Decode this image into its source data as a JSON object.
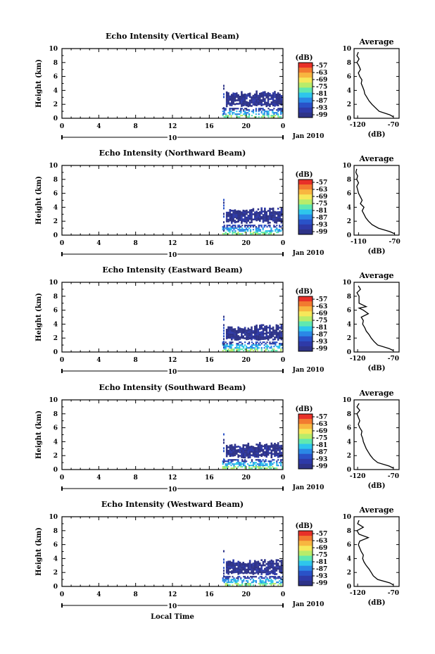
{
  "colorbar": {
    "unit": "(dB)",
    "labels": [
      "-57",
      "-63",
      "-69",
      "-75",
      "-81",
      "-87",
      "-93",
      "-99"
    ],
    "colors": [
      "#e83028",
      "#f27a30",
      "#f8b640",
      "#f6e85a",
      "#b8ec6a",
      "#60e8b0",
      "#2ec6ec",
      "#2a88e6",
      "#2a52c8",
      "#2e3aa8",
      "#2e3388"
    ]
  },
  "common": {
    "x_ticks": [
      "0",
      "4",
      "8",
      "12",
      "16",
      "20",
      "0"
    ],
    "y_ticks": [
      "0",
      "2",
      "4",
      "6",
      "8",
      "10"
    ],
    "ylabel": "Height (km)",
    "date_day": "10",
    "date_label": "Jan 2010",
    "avg_title": "Average",
    "avg_xlabel": "(dB)",
    "xlabel": "Local Time"
  },
  "chart_data": [
    {
      "type": "heatmap",
      "title": "Echo Intensity (Vertical Beam)",
      "xlim": [
        0,
        24
      ],
      "ylim": [
        0,
        10
      ],
      "avg_profile": {
        "type": "line",
        "x_ticks": [
          "-120",
          "-70"
        ],
        "xlim": [
          -125,
          -62
        ],
        "heights": [
          0.2,
          0.5,
          1.0,
          1.5,
          2.0,
          2.5,
          3.0,
          3.5,
          4.0,
          4.5,
          5.0,
          5.5,
          6.0,
          6.5,
          7.0,
          7.5,
          8.0,
          8.5,
          9.0,
          9.5
        ],
        "values": [
          -70,
          -75,
          -90,
          -95,
          -100,
          -104,
          -107,
          -110,
          -111,
          -113,
          -115,
          -114,
          -117,
          -119,
          -116,
          -118,
          -121,
          -118,
          -121,
          -119
        ]
      }
    },
    {
      "type": "heatmap",
      "title": "Echo Intensity (Northward Beam)",
      "xlim": [
        0,
        24
      ],
      "ylim": [
        0,
        10
      ],
      "avg_profile": {
        "type": "line",
        "x_ticks": [
          "-110",
          "-70"
        ],
        "xlim": [
          -115,
          -65
        ],
        "heights": [
          0.2,
          0.5,
          1.0,
          1.5,
          2.0,
          2.5,
          3.0,
          3.5,
          4.0,
          4.5,
          5.0,
          5.5,
          6.0,
          6.5,
          7.0,
          7.5,
          8.0,
          8.5,
          9.0,
          9.5
        ],
        "values": [
          -70,
          -75,
          -88,
          -95,
          -99,
          -102,
          -104,
          -106,
          -104,
          -108,
          -106,
          -108,
          -110,
          -111,
          -112,
          -110,
          -112,
          -111,
          -113,
          -112
        ]
      }
    },
    {
      "type": "heatmap",
      "title": "Echo Intensity (Eastward Beam)",
      "xlim": [
        0,
        24
      ],
      "ylim": [
        0,
        10
      ],
      "avg_profile": {
        "type": "line",
        "x_ticks": [
          "-120",
          "-70"
        ],
        "xlim": [
          -125,
          -62
        ],
        "heights": [
          0.2,
          0.5,
          1.0,
          1.5,
          2.0,
          2.5,
          3.0,
          3.5,
          4.0,
          4.5,
          5.0,
          5.5,
          6.0,
          6.3,
          6.5,
          7.0,
          8.0,
          8.5,
          9.0,
          9.5
        ],
        "values": [
          -70,
          -76,
          -92,
          -97,
          -101,
          -104,
          -108,
          -110,
          -113,
          -112,
          -115,
          -105,
          -112,
          -118,
          -108,
          -118,
          -118,
          -121,
          -116,
          -119
        ]
      }
    },
    {
      "type": "heatmap",
      "title": "Echo Intensity (Southward Beam)",
      "xlim": [
        0,
        24
      ],
      "ylim": [
        0,
        10
      ],
      "avg_profile": {
        "type": "line",
        "x_ticks": [
          "-120",
          "-70"
        ],
        "xlim": [
          -125,
          -62
        ],
        "heights": [
          0.2,
          0.5,
          1.0,
          1.5,
          2.0,
          2.5,
          3.0,
          3.5,
          4.0,
          4.5,
          5.0,
          5.5,
          6.0,
          6.5,
          7.0,
          7.5,
          8.0,
          8.5,
          9.0,
          9.5
        ],
        "values": [
          -70,
          -76,
          -92,
          -98,
          -102,
          -105,
          -108,
          -110,
          -112,
          -113,
          -115,
          -114,
          -117,
          -119,
          -117,
          -119,
          -121,
          -117,
          -121,
          -118
        ]
      }
    },
    {
      "type": "heatmap",
      "title": "Echo Intensity (Westward Beam)",
      "xlim": [
        0,
        24
      ],
      "ylim": [
        0,
        10
      ],
      "avg_profile": {
        "type": "line",
        "x_ticks": [
          "-120",
          "-70"
        ],
        "xlim": [
          -125,
          -62
        ],
        "heights": [
          0.2,
          0.5,
          1.0,
          1.5,
          2.0,
          2.5,
          3.0,
          3.5,
          4.0,
          4.5,
          5.0,
          5.5,
          6.0,
          6.5,
          7.0,
          7.5,
          8.0,
          8.5,
          9.0,
          9.5
        ],
        "values": [
          -70,
          -75,
          -92,
          -98,
          -101,
          -104,
          -108,
          -111,
          -113,
          -112,
          -115,
          -117,
          -119,
          -117,
          -105,
          -118,
          -121,
          -112,
          -120,
          -118
        ]
      }
    }
  ]
}
